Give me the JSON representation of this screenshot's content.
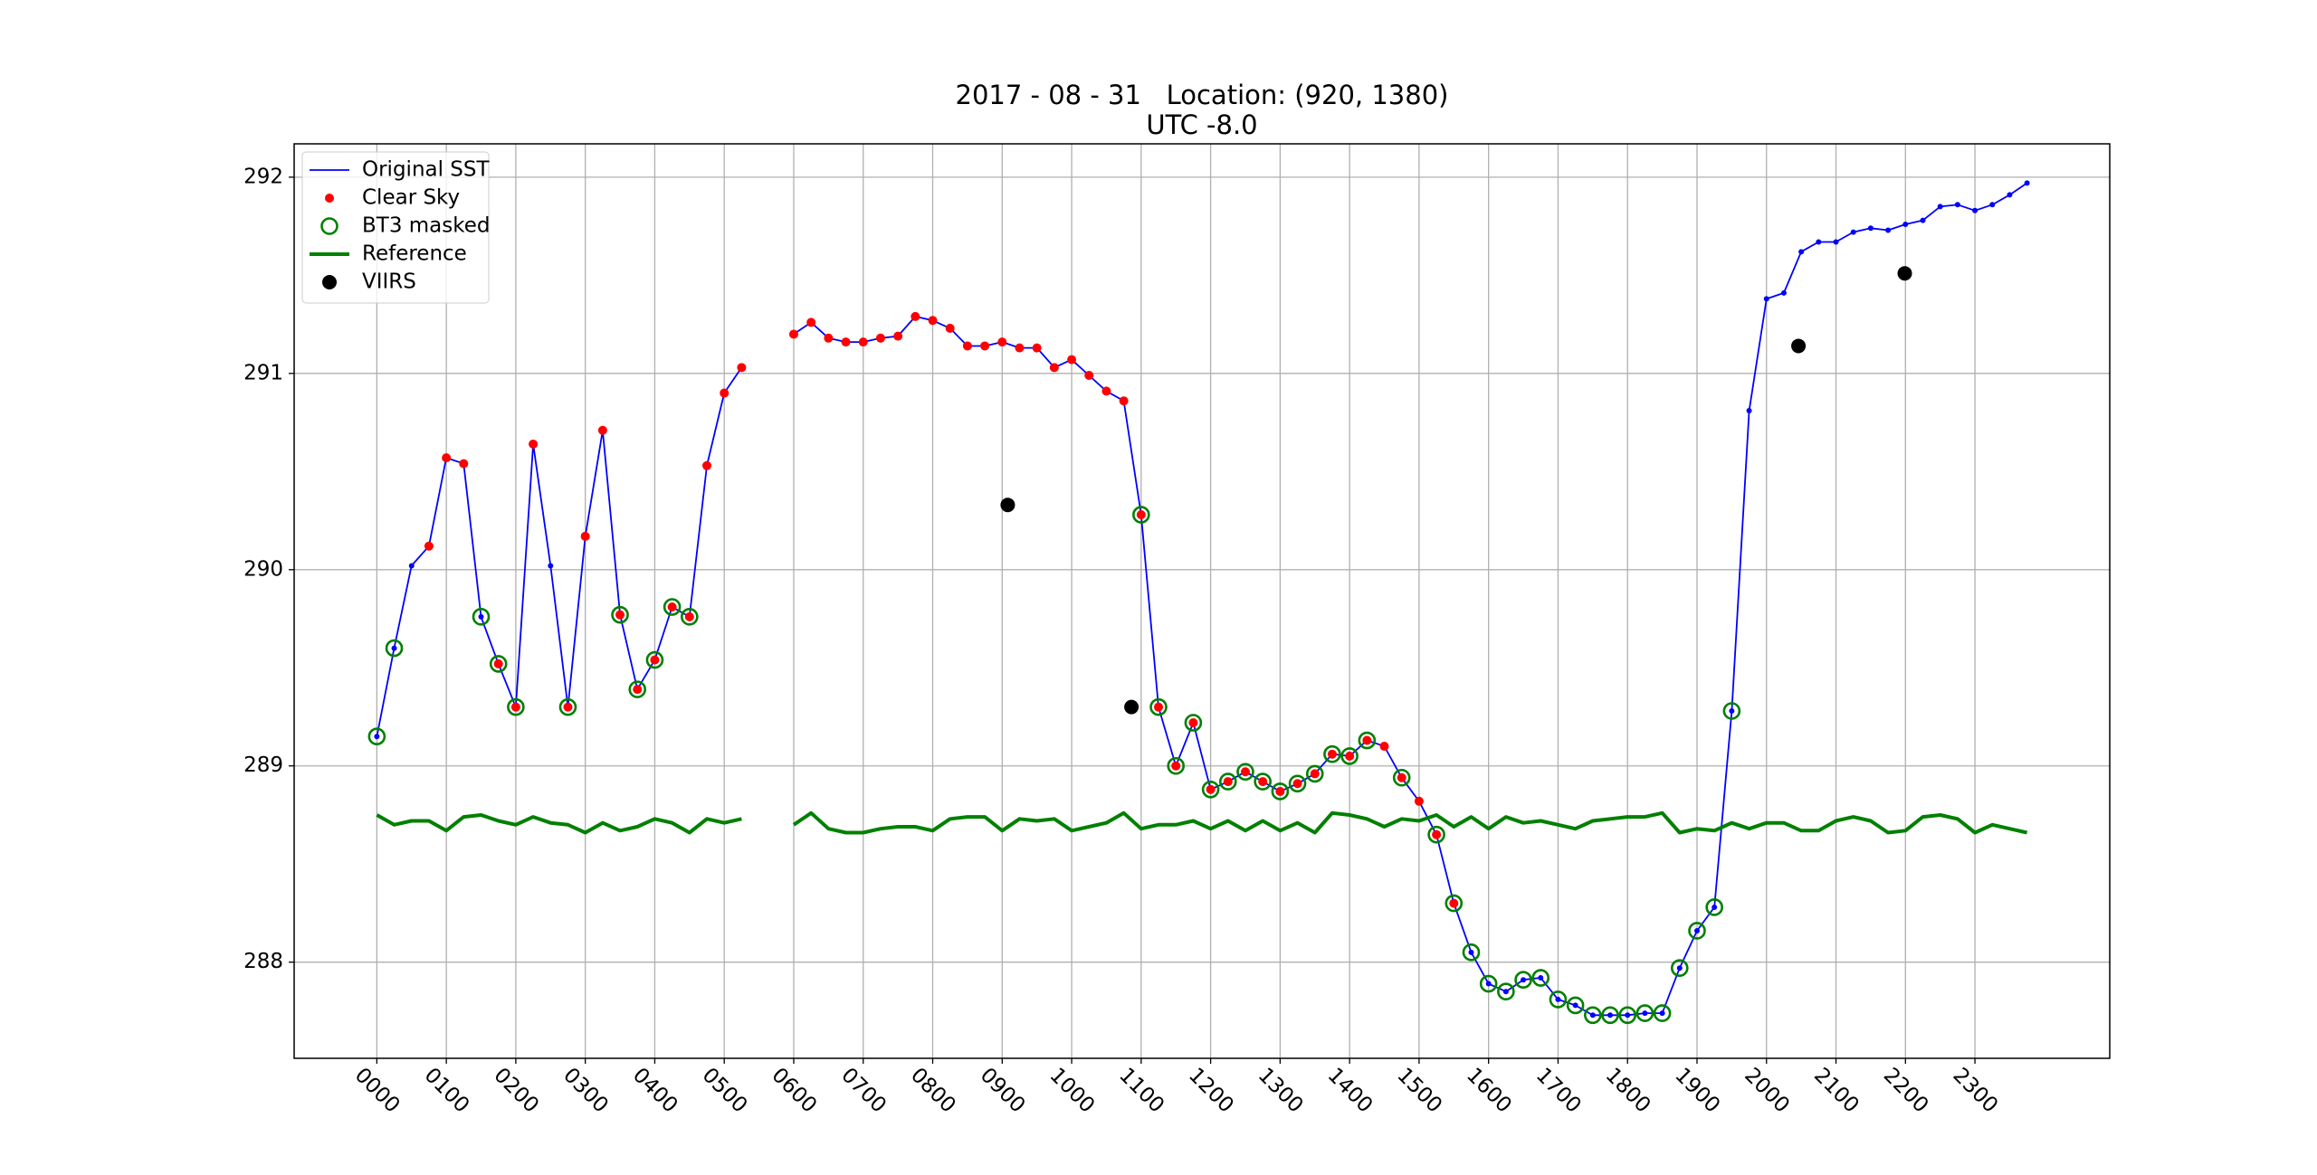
{
  "chart_data": {
    "type": "line",
    "title": "2017 - 08 - 31   Location: (920, 1380)",
    "subtitle": "UTC -8.0",
    "x": [
      0,
      0.25,
      0.5,
      0.75,
      1,
      1.25,
      1.5,
      1.75,
      2,
      2.25,
      2.5,
      2.75,
      3,
      3.25,
      3.5,
      3.75,
      4,
      4.25,
      4.5,
      4.75,
      5,
      5.25,
      5.5,
      5.75,
      6,
      6.25,
      6.5,
      6.75,
      7,
      7.25,
      7.5,
      7.75,
      8,
      8.25,
      8.5,
      8.75,
      9,
      9.25,
      9.5,
      9.75,
      10,
      10.25,
      10.5,
      10.75,
      11,
      11.25,
      11.5,
      11.75,
      12,
      12.25,
      12.5,
      12.75,
      13,
      13.25,
      13.5,
      13.75,
      14,
      14.25,
      14.5,
      14.75,
      15,
      15.25,
      15.5,
      15.75,
      16,
      16.25,
      16.5,
      16.75,
      17,
      17.25,
      17.5,
      17.75,
      18,
      18.25,
      18.5,
      18.75,
      19,
      19.25,
      19.5,
      19.75,
      20,
      20.25,
      20.5,
      20.75,
      21,
      21.25,
      21.5,
      21.75,
      22,
      22.25,
      22.5,
      22.75,
      23,
      23.25,
      23.5,
      23.75
    ],
    "series": [
      {
        "name": "Original SST",
        "color": "#0000ff",
        "line": true,
        "marker": "point",
        "values": [
          289.15,
          289.6,
          290.02,
          290.12,
          290.57,
          290.54,
          289.76,
          289.52,
          289.3,
          290.64,
          290.02,
          289.3,
          290.17,
          290.71,
          289.77,
          289.39,
          289.54,
          289.81,
          289.76,
          290.53,
          290.9,
          291.03,
          null,
          null,
          291.2,
          291.26,
          291.18,
          291.16,
          291.16,
          291.18,
          291.19,
          291.29,
          291.27,
          291.23,
          291.14,
          291.14,
          291.16,
          291.13,
          291.13,
          291.03,
          291.07,
          290.99,
          290.91,
          290.86,
          290.28,
          289.3,
          289.0,
          289.22,
          288.88,
          288.92,
          288.97,
          288.92,
          288.87,
          288.91,
          288.96,
          289.06,
          289.05,
          289.13,
          289.1,
          288.94,
          288.82,
          288.65,
          288.3,
          288.05,
          287.89,
          287.85,
          287.91,
          287.92,
          287.81,
          287.78,
          287.73,
          287.73,
          287.73,
          287.74,
          287.74,
          287.97,
          288.16,
          288.28,
          289.28,
          290.81,
          291.38,
          291.41,
          291.62,
          291.67,
          291.67,
          291.72,
          291.74,
          291.73,
          291.76,
          291.78,
          291.85,
          291.86,
          291.83,
          291.86,
          291.91,
          291.97
        ]
      },
      {
        "name": "Clear Sky",
        "color": "#ff0000",
        "line": false,
        "marker": "dot",
        "values": [
          null,
          null,
          null,
          290.12,
          290.57,
          290.54,
          null,
          289.52,
          289.3,
          290.64,
          null,
          289.3,
          290.17,
          290.71,
          289.77,
          289.39,
          289.54,
          289.81,
          289.76,
          290.53,
          290.9,
          291.03,
          null,
          null,
          291.2,
          291.26,
          291.18,
          291.16,
          291.16,
          291.18,
          291.19,
          291.29,
          291.27,
          291.23,
          291.14,
          291.14,
          291.16,
          291.13,
          291.13,
          291.03,
          291.07,
          290.99,
          290.91,
          290.86,
          290.28,
          289.3,
          289.0,
          289.22,
          288.88,
          288.92,
          288.97,
          288.92,
          288.87,
          288.91,
          288.96,
          289.06,
          289.05,
          289.13,
          289.1,
          288.94,
          288.82,
          288.65,
          288.3,
          null,
          null,
          null,
          null,
          null,
          null,
          null,
          null,
          null,
          null,
          null,
          null,
          null,
          null,
          null,
          null,
          null,
          null,
          null,
          null,
          null,
          null,
          null,
          null,
          null,
          null,
          null,
          null,
          null,
          null,
          null,
          null,
          null
        ]
      },
      {
        "name": "BT3 masked",
        "color": "#008000",
        "line": false,
        "marker": "ring",
        "values": [
          289.15,
          289.6,
          null,
          null,
          null,
          null,
          289.76,
          289.52,
          289.3,
          null,
          null,
          289.3,
          null,
          null,
          289.77,
          289.39,
          289.54,
          289.81,
          289.76,
          null,
          null,
          null,
          null,
          null,
          null,
          null,
          null,
          null,
          null,
          null,
          null,
          null,
          null,
          null,
          null,
          null,
          null,
          null,
          null,
          null,
          null,
          null,
          null,
          null,
          290.28,
          289.3,
          289.0,
          289.22,
          288.88,
          288.92,
          288.97,
          288.92,
          288.87,
          288.91,
          288.96,
          289.06,
          289.05,
          289.13,
          null,
          288.94,
          null,
          288.65,
          288.3,
          288.05,
          287.89,
          287.85,
          287.91,
          287.92,
          287.81,
          287.78,
          287.73,
          287.73,
          287.73,
          287.74,
          287.74,
          287.97,
          288.16,
          288.28,
          289.28,
          null,
          null,
          null,
          null,
          null,
          null,
          null,
          null,
          null,
          null,
          null,
          null,
          null,
          null,
          null,
          null,
          null
        ]
      },
      {
        "name": "Reference",
        "color": "#008000",
        "line": true,
        "width": 4,
        "values": [
          288.75,
          288.7,
          288.72,
          288.72,
          288.67,
          288.74,
          288.75,
          288.72,
          288.7,
          288.74,
          288.71,
          288.7,
          288.66,
          288.71,
          288.67,
          288.69,
          288.73,
          288.71,
          288.66,
          288.73,
          288.71,
          288.73,
          null,
          null,
          288.7,
          288.76,
          288.68,
          288.66,
          288.66,
          288.68,
          288.69,
          288.69,
          288.67,
          288.73,
          288.74,
          288.74,
          288.67,
          288.73,
          288.72,
          288.73,
          288.67,
          288.69,
          288.71,
          288.76,
          288.68,
          288.7,
          288.7,
          288.72,
          288.68,
          288.72,
          288.67,
          288.72,
          288.67,
          288.71,
          288.66,
          288.76,
          288.75,
          288.73,
          288.69,
          288.73,
          288.72,
          288.75,
          288.69,
          288.74,
          288.68,
          288.74,
          288.71,
          288.72,
          288.7,
          288.68,
          288.72,
          288.73,
          288.74,
          288.74,
          288.76,
          288.66,
          288.68,
          288.67,
          288.71,
          288.68,
          288.71,
          288.71,
          288.67,
          288.67,
          288.72,
          288.74,
          288.72,
          288.66,
          288.67,
          288.74,
          288.75,
          288.73,
          288.66,
          288.7,
          288.68,
          288.66
        ]
      },
      {
        "name": "VIIRS",
        "color": "#000000",
        "line": false,
        "marker": "large-dot",
        "x": [
          9.08,
          10.86,
          20.46,
          21.99
        ],
        "values": [
          290.33,
          289.3,
          291.14,
          291.51
        ]
      }
    ],
    "xlim": [
      -1.19,
      24.94
    ],
    "xticks": [
      {
        "value": 0,
        "label": "0000"
      },
      {
        "value": 1,
        "label": "0100"
      },
      {
        "value": 2,
        "label": "0200"
      },
      {
        "value": 3,
        "label": "0300"
      },
      {
        "value": 4,
        "label": "0400"
      },
      {
        "value": 5,
        "label": "0500"
      },
      {
        "value": 6,
        "label": "0600"
      },
      {
        "value": 7,
        "label": "0700"
      },
      {
        "value": 8,
        "label": "0800"
      },
      {
        "value": 9,
        "label": "0900"
      },
      {
        "value": 10,
        "label": "1000"
      },
      {
        "value": 11,
        "label": "1100"
      },
      {
        "value": 12,
        "label": "1200"
      },
      {
        "value": 13,
        "label": "1300"
      },
      {
        "value": 14,
        "label": "1400"
      },
      {
        "value": 15,
        "label": "1500"
      },
      {
        "value": 16,
        "label": "1600"
      },
      {
        "value": 17,
        "label": "1700"
      },
      {
        "value": 18,
        "label": "1800"
      },
      {
        "value": 19,
        "label": "1900"
      },
      {
        "value": 20,
        "label": "2000"
      },
      {
        "value": 21,
        "label": "2100"
      },
      {
        "value": 22,
        "label": "2200"
      },
      {
        "value": 23,
        "label": "2300"
      }
    ],
    "ylim": [
      287.51,
      292.17
    ],
    "yticks": [
      288,
      289,
      290,
      291,
      292
    ],
    "grid": true,
    "legend": "upper-left"
  }
}
